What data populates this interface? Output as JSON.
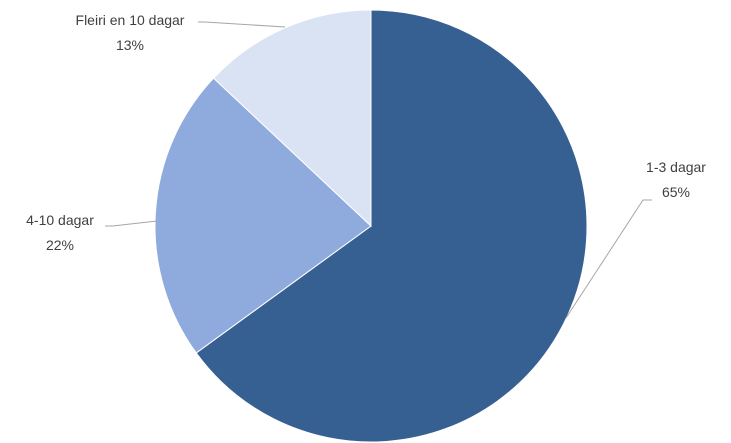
{
  "chart_data": {
    "type": "pie",
    "start_angle_deg": 0,
    "direction": "clockwise",
    "slices": [
      {
        "label": "1-3 dagar",
        "value": 65,
        "display": "65%",
        "color": "#376092"
      },
      {
        "label": "4-10 dagar",
        "value": 22,
        "display": "22%",
        "color": "#8faadc"
      },
      {
        "label": "Fleiri en 10 dagar",
        "value": 13,
        "display": "13%",
        "color": "#dae3f3"
      }
    ],
    "legend": "none"
  }
}
